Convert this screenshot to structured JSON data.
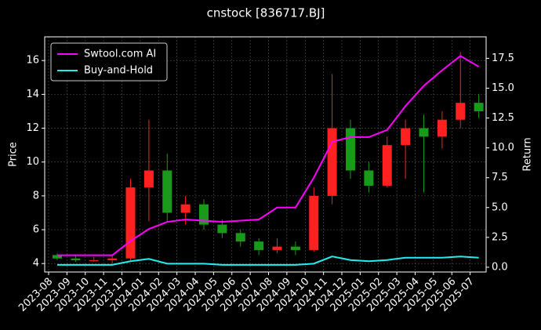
{
  "chart_data": {
    "type": "candlestick",
    "title": "cnstock [836717.BJ]",
    "ylabel": "Price",
    "y2label": "Return",
    "x": [
      "2023-08",
      "2023-09",
      "2023-10",
      "2023-11",
      "2023-12",
      "2024-01",
      "2024-02",
      "2024-03",
      "2024-04",
      "2024-05",
      "2024-06",
      "2024-07",
      "2024-08",
      "2024-09",
      "2024-10",
      "2024-11",
      "2024-12",
      "2025-01",
      "2025-02",
      "2025-03",
      "2025-04",
      "2025-05",
      "2025-06",
      "2025-07"
    ],
    "candles": {
      "open": [
        4.5,
        4.3,
        4.2,
        4.2,
        4.3,
        8.5,
        9.5,
        7.0,
        7.5,
        6.3,
        5.8,
        5.3,
        4.8,
        5.0,
        4.8,
        8.0,
        12.0,
        9.5,
        8.6,
        11.0,
        12.0,
        11.5,
        12.5,
        13.5
      ],
      "high": [
        4.6,
        4.5,
        4.4,
        4.5,
        9.0,
        12.5,
        10.5,
        8.0,
        7.8,
        6.6,
        6.0,
        5.5,
        5.5,
        5.3,
        8.5,
        15.2,
        12.5,
        10.0,
        11.5,
        12.5,
        12.8,
        13.0,
        16.5,
        14.0
      ],
      "low": [
        4.2,
        4.1,
        4.1,
        4.0,
        4.2,
        6.5,
        6.5,
        6.3,
        6.0,
        5.5,
        5.0,
        4.5,
        4.6,
        4.5,
        4.7,
        7.5,
        9.0,
        8.2,
        8.5,
        9.0,
        8.2,
        10.8,
        12.0,
        12.6
      ],
      "close": [
        4.3,
        4.2,
        4.2,
        4.3,
        8.5,
        9.5,
        7.0,
        7.5,
        6.3,
        5.8,
        5.3,
        4.8,
        5.0,
        4.8,
        8.0,
        12.0,
        9.5,
        8.6,
        11.0,
        12.0,
        11.5,
        12.5,
        13.5,
        13.0
      ],
      "up_color": "#ff2020",
      "down_color": "#1a9a1a"
    },
    "series": [
      {
        "name": "Swtool.com AI",
        "color": "#ff00ff",
        "axis": "y2",
        "values": [
          1.0,
          1.0,
          1.0,
          1.0,
          2.2,
          3.2,
          3.8,
          4.0,
          3.9,
          3.8,
          3.9,
          4.0,
          5.0,
          5.0,
          7.5,
          10.5,
          10.9,
          10.9,
          11.5,
          13.5,
          15.2,
          16.5,
          17.7,
          16.8
        ]
      },
      {
        "name": "Buy-and-Hold",
        "color": "#22eeee",
        "axis": "y2",
        "values": [
          0.2,
          0.2,
          0.2,
          0.2,
          0.5,
          0.7,
          0.3,
          0.3,
          0.3,
          0.2,
          0.2,
          0.2,
          0.2,
          0.2,
          0.3,
          0.9,
          0.6,
          0.5,
          0.6,
          0.8,
          0.8,
          0.8,
          0.9,
          0.8
        ]
      }
    ],
    "xlim": [
      "2023-08",
      "2025-08"
    ],
    "xticks": [
      "2023-08",
      "2023-09",
      "2023-10",
      "2023-11",
      "2023-12",
      "2024-01",
      "2024-02",
      "2024-03",
      "2024-04",
      "2024-05",
      "2024-06",
      "2024-07",
      "2024-08",
      "2024-09",
      "2024-10",
      "2024-11",
      "2024-12",
      "2025-01",
      "2025-02",
      "2025-03",
      "2025-04",
      "2025-05",
      "2025-06",
      "2025-07"
    ],
    "ylim": [
      3.5,
      17.4
    ],
    "yticks": [
      4,
      6,
      8,
      10,
      12,
      14,
      16
    ],
    "y2lim": [
      -0.4,
      19.3
    ],
    "y2ticks": [
      {
        "value": 0,
        "label": "0.0"
      },
      2.5,
      {
        "value": 5,
        "label": "5.0"
      },
      7.5,
      {
        "value": 10,
        "label": "10.0"
      },
      12.5,
      {
        "value": 15,
        "label": "15.0"
      },
      17.5
    ],
    "grid": true,
    "legend": "upper left"
  }
}
